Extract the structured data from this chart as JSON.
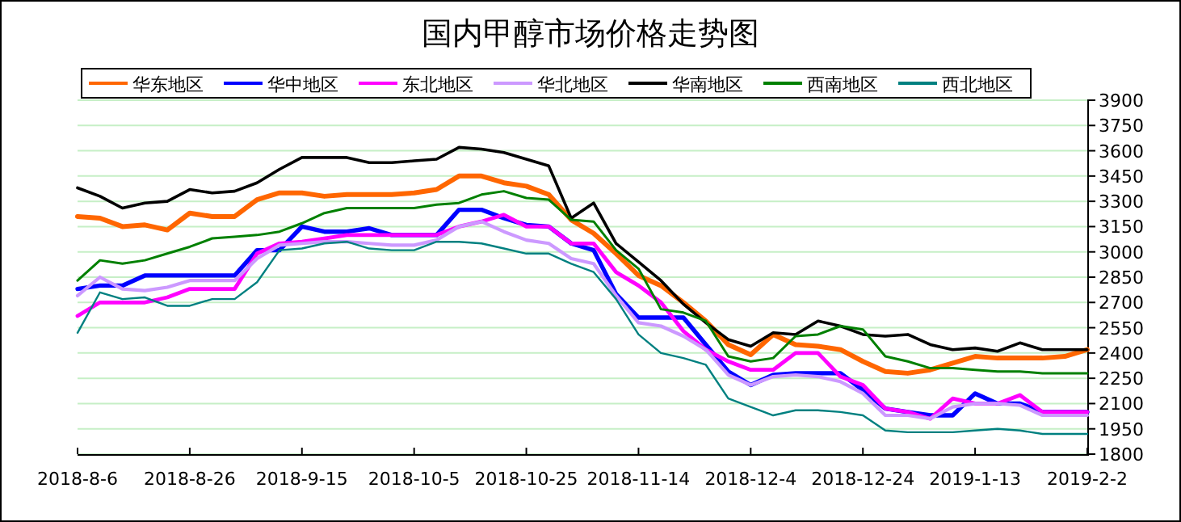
{
  "chart_data": {
    "type": "line",
    "title": "国内甲醇市场价格走势图",
    "legend": "top",
    "grid": "y",
    "marker": "none",
    "line_style": "solid",
    "x": [
      "2018-08-06",
      "2018-08-10",
      "2018-08-14",
      "2018-08-18",
      "2018-08-22",
      "2018-08-26",
      "2018-08-30",
      "2018-09-03",
      "2018-09-07",
      "2018-09-11",
      "2018-09-15",
      "2018-09-19",
      "2018-09-23",
      "2018-09-27",
      "2018-10-01",
      "2018-10-05",
      "2018-10-09",
      "2018-10-13",
      "2018-10-17",
      "2018-10-21",
      "2018-10-25",
      "2018-10-29",
      "2018-11-02",
      "2018-11-06",
      "2018-11-10",
      "2018-11-14",
      "2018-11-18",
      "2018-11-22",
      "2018-11-26",
      "2018-11-30",
      "2018-12-04",
      "2018-12-08",
      "2018-12-12",
      "2018-12-16",
      "2018-12-20",
      "2018-12-24",
      "2018-12-28",
      "2019-01-01",
      "2019-01-05",
      "2019-01-09",
      "2019-01-13",
      "2019-01-17",
      "2019-01-21",
      "2019-01-25",
      "2019-01-29",
      "2019-02-02"
    ],
    "xlim": [
      "2018-08-06",
      "2019-02-02"
    ],
    "xticks": [
      {
        "value": "2018-08-06",
        "label": "2018-8-6"
      },
      {
        "value": "2018-08-26",
        "label": "2018-8-26"
      },
      {
        "value": "2018-09-15",
        "label": "2018-9-15"
      },
      {
        "value": "2018-10-05",
        "label": "2018-10-5"
      },
      {
        "value": "2018-10-25",
        "label": "2018-10-25"
      },
      {
        "value": "2018-11-14",
        "label": "2018-11-14"
      },
      {
        "value": "2018-12-04",
        "label": "2018-12-4"
      },
      {
        "value": "2018-12-24",
        "label": "2018-12-24"
      },
      {
        "value": "2019-01-13",
        "label": "2019-1-13"
      },
      {
        "value": "2019-02-02",
        "label": "2019-2-2"
      }
    ],
    "ylim": [
      1800,
      3900
    ],
    "yticks": [
      1800,
      1950,
      2100,
      2250,
      2400,
      2550,
      2700,
      2850,
      3000,
      3150,
      3300,
      3450,
      3600,
      3750,
      3900
    ],
    "series": [
      {
        "name": "华东地区",
        "color": "#ff6600",
        "values": [
          3210,
          3200,
          3150,
          3160,
          3130,
          3230,
          3210,
          3210,
          3310,
          3350,
          3350,
          3330,
          3340,
          3340,
          3340,
          3350,
          3370,
          3450,
          3450,
          3410,
          3390,
          3340,
          3190,
          3110,
          2990,
          2860,
          2800,
          2700,
          2590,
          2450,
          2390,
          2510,
          2450,
          2440,
          2420,
          2350,
          2290,
          2280,
          2300,
          2340,
          2380,
          2370,
          2370,
          2370,
          2380,
          2420
        ]
      },
      {
        "name": "华中地区",
        "color": "#0000ff",
        "values": [
          2780,
          2800,
          2800,
          2860,
          2860,
          2860,
          2860,
          2860,
          3010,
          3010,
          3150,
          3120,
          3120,
          3140,
          3100,
          3100,
          3100,
          3250,
          3250,
          3200,
          3160,
          3150,
          3050,
          3010,
          2750,
          2610,
          2610,
          2610,
          2450,
          2290,
          2210,
          2270,
          2280,
          2280,
          2280,
          2180,
          2070,
          2050,
          2030,
          2030,
          2160,
          2100,
          2100,
          2050,
          2050,
          2050
        ]
      },
      {
        "name": "东北地区",
        "color": "#ff00ff",
        "values": [
          2620,
          2700,
          2700,
          2700,
          2730,
          2780,
          2780,
          2780,
          2990,
          3050,
          3060,
          3080,
          3100,
          3100,
          3100,
          3100,
          3100,
          3150,
          3180,
          3220,
          3150,
          3150,
          3050,
          3050,
          2880,
          2800,
          2700,
          2530,
          2420,
          2350,
          2300,
          2300,
          2400,
          2400,
          2260,
          2210,
          2070,
          2050,
          2010,
          2130,
          2100,
          2100,
          2150,
          2050,
          2050,
          2050
        ]
      },
      {
        "name": "华北地区",
        "color": "#cc99ff",
        "values": [
          2740,
          2850,
          2780,
          2770,
          2790,
          2830,
          2830,
          2830,
          2960,
          3040,
          3050,
          3060,
          3060,
          3050,
          3040,
          3040,
          3070,
          3150,
          3180,
          3120,
          3070,
          3050,
          2960,
          2930,
          2740,
          2580,
          2560,
          2500,
          2420,
          2270,
          2210,
          2260,
          2270,
          2260,
          2230,
          2160,
          2030,
          2030,
          2010,
          2080,
          2100,
          2100,
          2090,
          2030,
          2030,
          2030
        ]
      },
      {
        "name": "华南地区",
        "color": "#000000",
        "values": [
          3380,
          3330,
          3260,
          3290,
          3300,
          3370,
          3350,
          3360,
          3410,
          3490,
          3560,
          3560,
          3560,
          3530,
          3530,
          3540,
          3550,
          3620,
          3610,
          3590,
          3550,
          3510,
          3200,
          3290,
          3050,
          2940,
          2830,
          2690,
          2580,
          2480,
          2440,
          2520,
          2510,
          2590,
          2560,
          2510,
          2500,
          2510,
          2450,
          2420,
          2430,
          2410,
          2460,
          2420,
          2420,
          2420
        ]
      },
      {
        "name": "西南地区",
        "color": "#008000",
        "values": [
          2830,
          2950,
          2930,
          2950,
          2990,
          3030,
          3080,
          3090,
          3100,
          3120,
          3170,
          3230,
          3260,
          3260,
          3260,
          3260,
          3280,
          3290,
          3340,
          3360,
          3320,
          3310,
          3190,
          3180,
          3010,
          2900,
          2660,
          2640,
          2590,
          2380,
          2350,
          2370,
          2500,
          2510,
          2560,
          2540,
          2380,
          2350,
          2310,
          2310,
          2300,
          2290,
          2290,
          2280,
          2280,
          2280
        ]
      },
      {
        "name": "西北地区",
        "color": "#008080",
        "values": [
          2520,
          2760,
          2720,
          2730,
          2680,
          2680,
          2720,
          2720,
          2820,
          3010,
          3020,
          3050,
          3060,
          3020,
          3010,
          3010,
          3060,
          3060,
          3050,
          3020,
          2990,
          2990,
          2930,
          2880,
          2720,
          2510,
          2400,
          2370,
          2330,
          2130,
          2080,
          2030,
          2060,
          2060,
          2050,
          2030,
          1940,
          1930,
          1930,
          1930,
          1940,
          1950,
          1940,
          1920,
          1920,
          1920
        ]
      }
    ]
  }
}
